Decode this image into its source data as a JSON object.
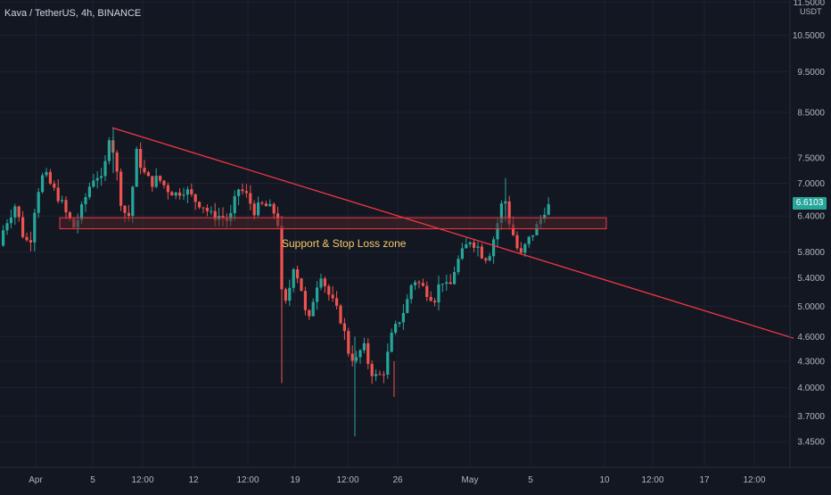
{
  "header": {
    "title": "Kava / TetherUS, 4h, BINANCE",
    "price_axis_unit": "USDT",
    "last_price": "6.6103"
  },
  "annotation": {
    "zone_label": "Support & Stop Loss zone"
  },
  "colors": {
    "background": "#131722",
    "up": "#26a69a",
    "down": "#ef5350",
    "trendline": "#f23645",
    "zone_fill": "#4a2327",
    "zone_border": "#f23645",
    "zone_text": "#f5c86b",
    "axis_text": "#b2b5be",
    "grid": "#1e2230"
  },
  "chart_data": {
    "type": "candlestick",
    "title": "Kava / TetherUS, 4h, BINANCE",
    "y_scale": "log",
    "y_ticks": [
      "11.5000",
      "10.5000",
      "9.5000",
      "8.5000",
      "7.5000",
      "7.0000",
      "6.4000",
      "5.8000",
      "5.4000",
      "5.0000",
      "4.6000",
      "4.3000",
      "4.0000",
      "3.7000",
      "3.4500"
    ],
    "x_ticks": [
      "Apr",
      "5",
      "12:00",
      "12",
      "12:00",
      "19",
      "12:00",
      "26",
      "May",
      "5",
      "10",
      "12:00",
      "17",
      "12:00"
    ],
    "grid": true,
    "support_zone": [
      6.18,
      6.37
    ],
    "trendline": [
      {
        "date": "Apr 7 12:00",
        "price": 8.15
      },
      {
        "date": "May 19 12:00",
        "price": 4.58
      }
    ],
    "last_price": 6.6103
  }
}
